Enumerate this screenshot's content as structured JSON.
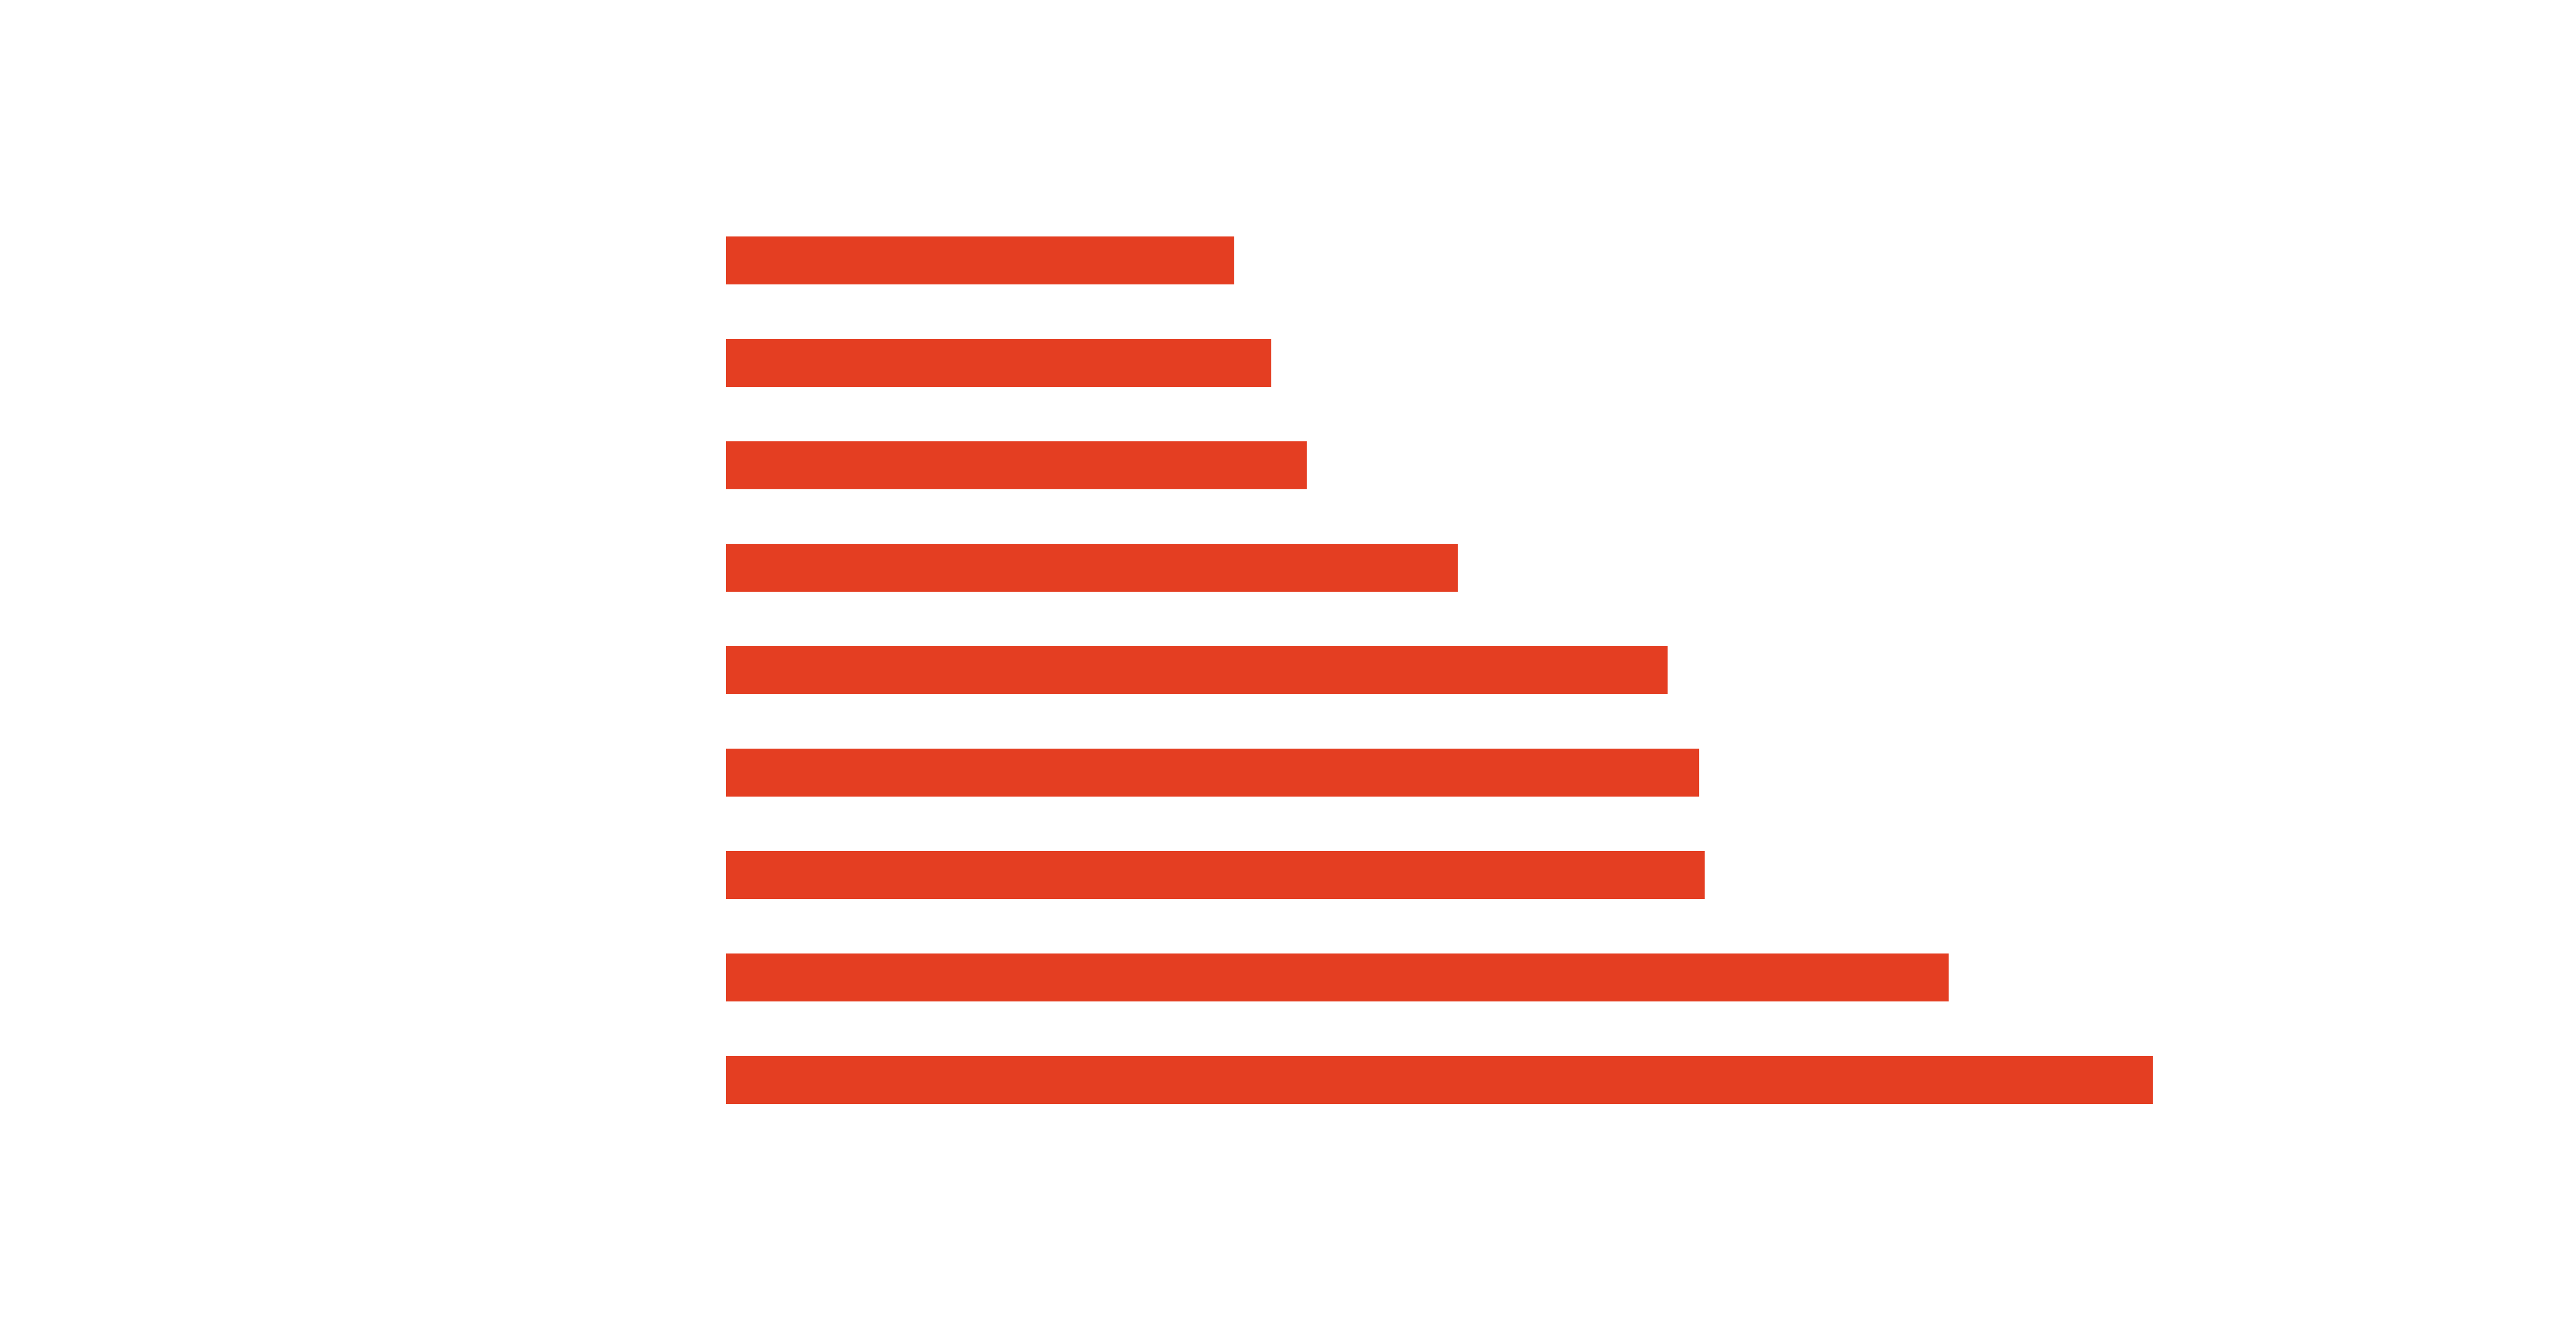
{
  "chart_data": {
    "type": "bar",
    "orientation": "horizontal",
    "title": "",
    "xlabel": "",
    "ylabel": "",
    "grid": false,
    "legend": "none",
    "bar_color": "#E43E22",
    "xlim": [
      0,
      100
    ],
    "categories": [
      "",
      "",
      "",
      "",
      "",
      "",
      "",
      "",
      ""
    ],
    "values": [
      35.6,
      38.2,
      40.7,
      51.3,
      66.0,
      68.2,
      68.6,
      85.7,
      100.0
    ]
  }
}
